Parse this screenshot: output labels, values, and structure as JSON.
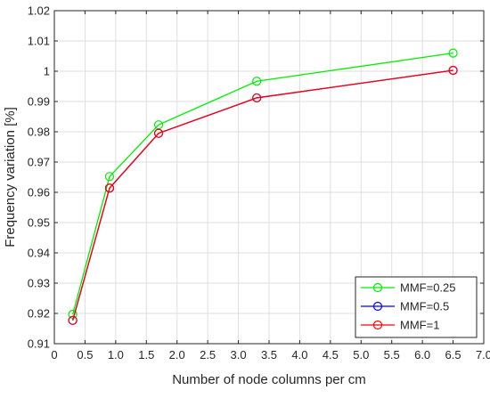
{
  "chart_data": {
    "type": "line",
    "title": "",
    "xlabel": "Number of node columns per cm",
    "ylabel": "Frequency variation [%]",
    "xlim": [
      0,
      7
    ],
    "ylim": [
      0.91,
      1.02
    ],
    "x_ticks": [
      "0",
      "0.5",
      "1.0",
      "1.5",
      "2.0",
      "2.5",
      "3.0",
      "3.5",
      "4.0",
      "4.5",
      "5.0",
      "5.5",
      "6.0",
      "6.5",
      "7.0"
    ],
    "x_tick_values": [
      0,
      0.5,
      1.0,
      1.5,
      2.0,
      2.5,
      3.0,
      3.5,
      4.0,
      4.5,
      5.0,
      5.5,
      6.0,
      6.5,
      7.0
    ],
    "y_ticks": [
      "0.91",
      "0.92",
      "0.93",
      "0.94",
      "0.95",
      "0.96",
      "0.97",
      "0.98",
      "0.99",
      "1",
      "1.01",
      "1.02"
    ],
    "y_tick_values": [
      0.91,
      0.92,
      0.93,
      0.94,
      0.95,
      0.96,
      0.97,
      0.98,
      0.99,
      1.0,
      1.01,
      1.02
    ],
    "grid": true,
    "legend_position": "bottom-right",
    "x": [
      0.3,
      0.9,
      1.7,
      3.3,
      6.5
    ],
    "series": [
      {
        "name": "MMF=0.25",
        "color": "#00ee00",
        "values": [
          0.9197,
          0.9652,
          0.9823,
          0.9967,
          1.006
        ]
      },
      {
        "name": "MMF=0.5",
        "color": "#0000ff",
        "values": [
          0.9177,
          0.9614,
          0.9795,
          0.9912,
          1.0003
        ]
      },
      {
        "name": "MMF=1",
        "color": "#ff0000",
        "values": [
          0.9177,
          0.9614,
          0.9795,
          0.9912,
          1.0003
        ]
      }
    ]
  }
}
